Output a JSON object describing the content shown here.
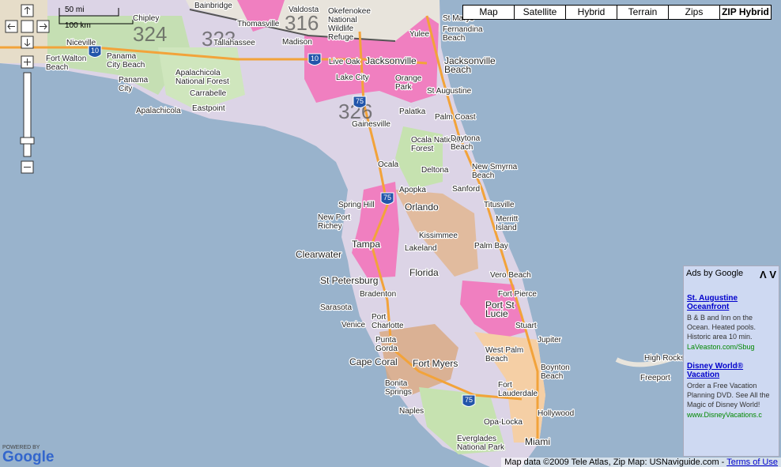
{
  "map_types": [
    "Map",
    "Satellite",
    "Hybrid",
    "Terrain",
    "Zips",
    "ZIP Hybrid"
  ],
  "scale": [
    "50 mi",
    "100 km"
  ],
  "zip_regions": [
    "324",
    "323",
    "316",
    "326"
  ],
  "highway_shields": [
    "10",
    "10",
    "75",
    "75",
    "75"
  ],
  "cities": [
    [
      "Bainbridge"
    ],
    [
      "Thomasville"
    ],
    [
      "Valdosta"
    ],
    [
      "Okefenokee",
      "National",
      "Wildlife",
      "Refuge"
    ],
    [
      "St Marys"
    ],
    [
      "Fernandina",
      "Beach"
    ],
    [
      "Yulee"
    ],
    [
      "Chipley"
    ],
    [
      "Niceville"
    ],
    [
      "Fort Walton",
      "Beach"
    ],
    [
      "Panama",
      "City Beach"
    ],
    [
      "Panama",
      "City"
    ],
    [
      "Apalachicola",
      "National Forest"
    ],
    [
      "Tallahassee"
    ],
    [
      "Madison"
    ],
    [
      "Live Oak"
    ],
    [
      "Lake City"
    ],
    [
      "Jacksonville"
    ],
    [
      "Jacksonville",
      "Beach"
    ],
    [
      "Orange",
      "Park"
    ],
    [
      "St Augustine"
    ],
    [
      "Palatka"
    ],
    [
      "Gainesville"
    ],
    [
      "Carrabelle"
    ],
    [
      "Eastpoint"
    ],
    [
      "Apalachicola"
    ],
    [
      "Palm Coast"
    ],
    [
      "Ocala National",
      "Forest"
    ],
    [
      "Daytona",
      "Beach"
    ],
    [
      "Ocala"
    ],
    [
      "Deltona"
    ],
    [
      "New Smyrna",
      "Beach"
    ],
    [
      "Apopka"
    ],
    [
      "Sanford"
    ],
    [
      "Spring Hill"
    ],
    [
      "Orlando"
    ],
    [
      "Titusville"
    ],
    [
      "New Port",
      "Richey"
    ],
    [
      "Merritt",
      "Island"
    ],
    [
      "Kissimmee"
    ],
    [
      "Palm Bay"
    ],
    [
      "Clearwater"
    ],
    [
      "Tampa"
    ],
    [
      "Lakeland"
    ],
    [
      "Florida"
    ],
    [
      "Vero Beach"
    ],
    [
      "St Petersburg"
    ],
    [
      "Bradenton"
    ],
    [
      "Fort Pierce"
    ],
    [
      "Port St",
      "Lucie"
    ],
    [
      "Sarasota"
    ],
    [
      "Venice"
    ],
    [
      "Port",
      "Charlotte"
    ],
    [
      "Stuart"
    ],
    [
      "Jupiter"
    ],
    [
      "Punta",
      "Gorda"
    ],
    [
      "West Palm",
      "Beach"
    ],
    [
      "Boynton",
      "Beach"
    ],
    [
      "Cape Coral"
    ],
    [
      "Fort Myers"
    ],
    [
      "High Rocks"
    ],
    [
      "Freeport"
    ],
    [
      "Bonita",
      "Springs"
    ],
    [
      "Fort",
      "Lauderdale"
    ],
    [
      "Naples"
    ],
    [
      "Hollywood"
    ],
    [
      "Opa-Locka"
    ],
    [
      "Everglades",
      "National Park"
    ],
    [
      "Miami"
    ]
  ],
  "ads": {
    "header": "Ads by Google",
    "arrows": "Λ V",
    "items": [
      {
        "title": "St. Augustine Oceanfront",
        "text": "B & B and Inn on the Ocean. Heated pools. Historic area 10 min.",
        "url": "LaVeaston.com/Sbug"
      },
      {
        "title": "Disney World® Vacation",
        "text": "Order a Free Vacation Planning DVD. See All the Magic of Disney World!",
        "url": "www.DisneyVacations.c"
      }
    ]
  },
  "footer": {
    "powered": "POWERED BY",
    "brand": "Google",
    "copyright": "Map data ©2009 Tele Atlas, Zip Map: USNaviguide.com -",
    "terms": "Terms of Use"
  }
}
